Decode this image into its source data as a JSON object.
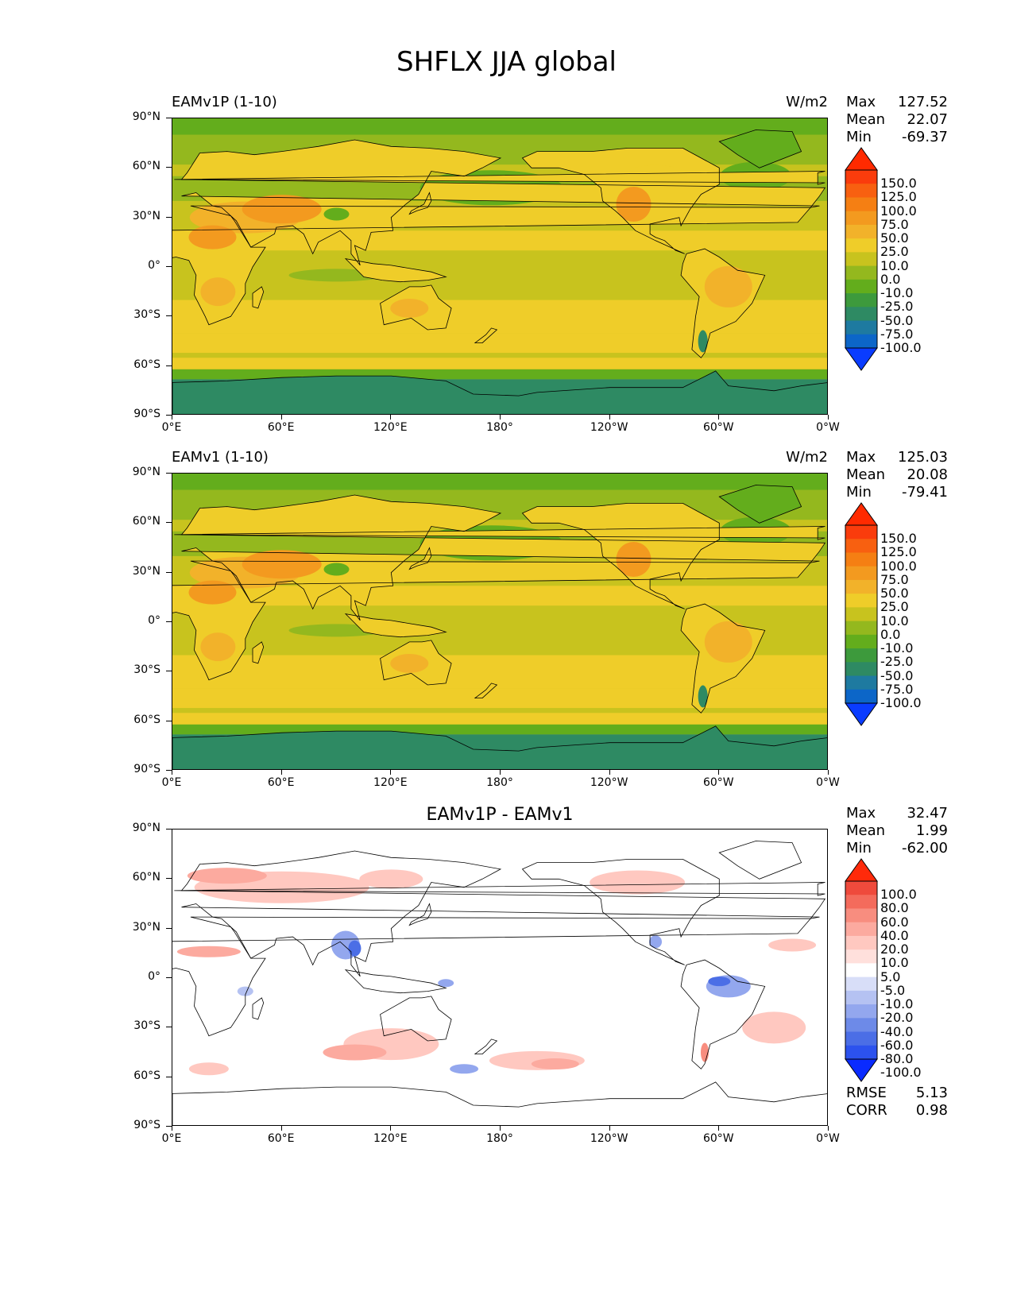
{
  "title": "SHFLX JJA global",
  "colors": {
    "sequential": [
      "#0a3cff",
      "#0c66c8",
      "#1e7aa0",
      "#2e8a63",
      "#3d9a3c",
      "#63ad1c",
      "#94b81e",
      "#c8c31e",
      "#efcd29",
      "#f2b22a",
      "#f39a1f",
      "#f57f13",
      "#f86010",
      "#fa3c0c",
      "#ff2a00"
    ],
    "diverging": [
      "#0a2bff",
      "#2c52ee",
      "#4b6ee6",
      "#6d8ae8",
      "#93a7ee",
      "#b5c2f2",
      "#d8def8",
      "#ffffff",
      "#ffe0dc",
      "#ffc8c0",
      "#fcaa9f",
      "#f88d7f",
      "#f46b5c",
      "#ef4a3c",
      "#ff2a0a"
    ],
    "coastline": "#000000"
  },
  "axes": {
    "lat_ticks": [
      "90°N",
      "60°N",
      "30°N",
      "0°",
      "30°S",
      "60°S",
      "90°S"
    ],
    "lon_ticks": [
      "0°E",
      "60°E",
      "120°E",
      "180°",
      "120°W",
      "60°W",
      "0°W"
    ]
  },
  "panels": [
    {
      "title": "EAMv1P (1-10)",
      "units": "W/m2",
      "stats": {
        "max_label": "Max",
        "max": "127.52",
        "mean_label": "Mean",
        "mean": "22.07",
        "min_label": "Min",
        "min": "-69.37"
      },
      "colorbar": {
        "labels": [
          "150.0",
          "125.0",
          "100.0",
          "75.0",
          "50.0",
          "25.0",
          "10.0",
          "0.0",
          "-10.0",
          "-25.0",
          "-50.0",
          "-75.0",
          "-100.0"
        ]
      }
    },
    {
      "title": "EAMv1 (1-10)",
      "units": "W/m2",
      "stats": {
        "max_label": "Max",
        "max": "125.03",
        "mean_label": "Mean",
        "mean": "20.08",
        "min_label": "Min",
        "min": "-79.41"
      },
      "colorbar": {
        "labels": [
          "150.0",
          "125.0",
          "100.0",
          "75.0",
          "50.0",
          "25.0",
          "10.0",
          "0.0",
          "-10.0",
          "-25.0",
          "-50.0",
          "-75.0",
          "-100.0"
        ]
      }
    },
    {
      "title": "EAMv1P - EAMv1",
      "units": "",
      "stats": {
        "max_label": "Max",
        "max": "32.47",
        "mean_label": "Mean",
        "mean": "1.99",
        "min_label": "Min",
        "min": "-62.00"
      },
      "colorbar": {
        "labels": [
          "100.0",
          "80.0",
          "60.0",
          "40.0",
          "20.0",
          "10.0",
          "5.0",
          "-5.0",
          "-10.0",
          "-20.0",
          "-40.0",
          "-60.0",
          "-80.0",
          "-100.0"
        ]
      },
      "errors": {
        "rmse_label": "RMSE",
        "rmse": "5.13",
        "corr_label": "CORR",
        "corr": "0.98"
      }
    }
  ],
  "chart_data": [
    {
      "type": "heatmap",
      "title": "EAMv1P (1-10)",
      "xlabel": "",
      "ylabel": "",
      "xlim": [
        0,
        360
      ],
      "ylim": [
        -90,
        90
      ],
      "x_ticks": [
        "0°E",
        "60°E",
        "120°E",
        "180°",
        "120°W",
        "60°W",
        "0°W"
      ],
      "y_ticks": [
        "90°N",
        "60°N",
        "30°N",
        "0°",
        "30°S",
        "60°S",
        "90°S"
      ],
      "units": "W/m2",
      "max": 127.52,
      "mean": 22.07,
      "min": -69.37,
      "levels": [
        -100,
        -75,
        -50,
        -25,
        -10,
        0,
        10,
        25,
        50,
        75,
        100,
        125,
        150
      ]
    },
    {
      "type": "heatmap",
      "title": "EAMv1 (1-10)",
      "xlabel": "",
      "ylabel": "",
      "xlim": [
        0,
        360
      ],
      "ylim": [
        -90,
        90
      ],
      "x_ticks": [
        "0°E",
        "60°E",
        "120°E",
        "180°",
        "120°W",
        "60°W",
        "0°W"
      ],
      "y_ticks": [
        "90°N",
        "60°N",
        "30°N",
        "0°",
        "30°S",
        "60°S",
        "90°S"
      ],
      "units": "W/m2",
      "max": 125.03,
      "mean": 20.08,
      "min": -79.41,
      "levels": [
        -100,
        -75,
        -50,
        -25,
        -10,
        0,
        10,
        25,
        50,
        75,
        100,
        125,
        150
      ]
    },
    {
      "type": "heatmap",
      "title": "EAMv1P - EAMv1",
      "xlabel": "",
      "ylabel": "",
      "xlim": [
        0,
        360
      ],
      "ylim": [
        -90,
        90
      ],
      "x_ticks": [
        "0°E",
        "60°E",
        "120°E",
        "180°",
        "120°W",
        "60°W",
        "0°W"
      ],
      "y_ticks": [
        "90°N",
        "60°N",
        "30°N",
        "0°",
        "30°S",
        "60°S",
        "90°S"
      ],
      "max": 32.47,
      "mean": 1.99,
      "min": -62.0,
      "rmse": 5.13,
      "corr": 0.98,
      "levels": [
        -100,
        -80,
        -60,
        -40,
        -20,
        -10,
        -5,
        5,
        10,
        20,
        40,
        60,
        80,
        100
      ]
    }
  ]
}
